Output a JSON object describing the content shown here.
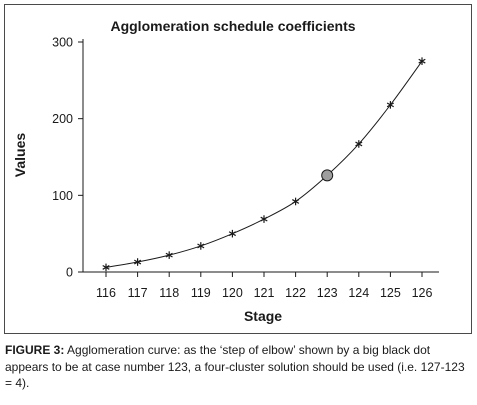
{
  "caption": {
    "label": "FIGURE 3:",
    "text": " Agglomeration curve: as the ‘step of elbow’ shown by a big black dot appears to be at case number 123, a four-cluster solution should be used (i.e. 127-123 = 4)."
  },
  "chart_data": {
    "type": "line",
    "title": "Agglomeration schedule coefficients",
    "xlabel": "Stage",
    "ylabel": "Values",
    "x": [
      116,
      117,
      118,
      119,
      120,
      121,
      122,
      123,
      124,
      125,
      126
    ],
    "series": [
      {
        "values": [
          6,
          13,
          22,
          34,
          50,
          69,
          92,
          126,
          167,
          218,
          275
        ]
      }
    ],
    "highlight": {
      "x": 123,
      "y": 126,
      "marker": "filled-circle",
      "color": "#9e9e9e"
    },
    "marker": "asterisk",
    "ylim": [
      0,
      300
    ],
    "yticks": [
      0,
      100,
      200,
      300
    ],
    "xlim": [
      116,
      126
    ],
    "grid": false,
    "line_color": "#1a1a1a"
  }
}
